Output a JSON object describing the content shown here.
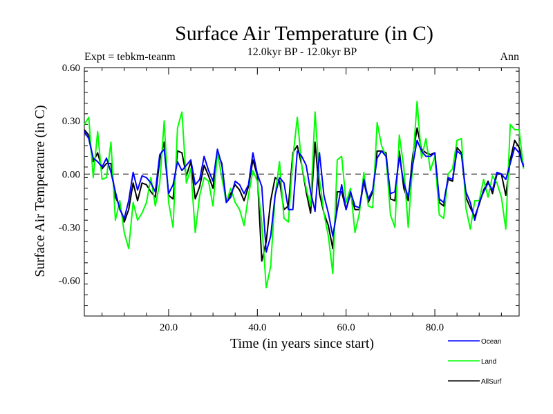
{
  "chart_data": {
    "type": "line",
    "title": "Surface Air Temperature (in C)",
    "subtitle_left": "Expt = tebkm-teanm",
    "subtitle_center": "12.0kyr BP - 12.0kyr BP",
    "subtitle_right": "Ann",
    "xlabel": "Time (in years since start)",
    "ylabel": "Surface Air Temperature (in C)",
    "xlim": [
      1,
      99
    ],
    "ylim": [
      -0.8,
      0.6
    ],
    "x_ticks": [
      20,
      40,
      60,
      80
    ],
    "x_tick_labels": [
      "20.0",
      "40.0",
      "60.0",
      "80.0"
    ],
    "y_ticks": [
      0.6,
      0.3,
      0.0,
      -0.3,
      -0.6
    ],
    "y_tick_labels": [
      "0.60",
      "0.30",
      "0.00",
      "-0.30",
      "-0.60"
    ],
    "zero_line": "dashed",
    "legend_position": "bottom-right",
    "colors": {
      "Ocean": "#0000ff",
      "Land": "#00ff00",
      "AllSurf": "#000000"
    },
    "x_start": 1,
    "x_step": 1,
    "series": [
      {
        "name": "AllSurf",
        "values": [
          0.25,
          0.22,
          0.07,
          0.12,
          0.03,
          0.06,
          0.06,
          -0.13,
          -0.18,
          -0.27,
          -0.2,
          -0.05,
          -0.15,
          -0.05,
          -0.06,
          -0.1,
          -0.13,
          0.08,
          0.18,
          -0.12,
          -0.14,
          0.13,
          0.12,
          -0.01,
          0.07,
          -0.14,
          -0.07,
          0.05,
          -0.01,
          -0.08,
          0.12,
          0.06,
          -0.16,
          -0.11,
          -0.06,
          -0.09,
          -0.15,
          -0.07,
          0.08,
          -0.01,
          -0.49,
          -0.38,
          -0.15,
          -0.02,
          -0.04,
          -0.2,
          -0.18,
          0.12,
          0.16,
          0.05,
          -0.1,
          -0.22,
          0.18,
          -0.11,
          -0.22,
          -0.29,
          -0.42,
          -0.1,
          -0.1,
          -0.2,
          -0.11,
          -0.2,
          -0.2,
          -0.04,
          -0.16,
          -0.1,
          0.13,
          0.13,
          0.12,
          -0.14,
          -0.15,
          0.13,
          -0.08,
          -0.15,
          0.1,
          0.26,
          0.14,
          0.12,
          0.11,
          0.12,
          -0.16,
          -0.18,
          -0.03,
          -0.04,
          0.15,
          0.12,
          -0.13,
          -0.19,
          -0.24,
          -0.17,
          -0.09,
          -0.04,
          -0.11,
          0.0,
          0.0,
          -0.12,
          0.08,
          0.19,
          0.15,
          0.05
        ]
      },
      {
        "name": "Land",
        "values": [
          0.28,
          0.32,
          -0.02,
          0.24,
          -0.03,
          -0.02,
          0.18,
          -0.26,
          -0.15,
          -0.33,
          -0.42,
          -0.16,
          -0.26,
          -0.22,
          -0.16,
          -0.02,
          -0.18,
          -0.05,
          0.3,
          -0.16,
          -0.3,
          0.26,
          0.35,
          -0.05,
          0.03,
          -0.33,
          -0.12,
          -0.02,
          -0.04,
          -0.18,
          0.12,
          -0.02,
          -0.16,
          -0.08,
          -0.16,
          -0.2,
          -0.29,
          -0.12,
          0.02,
          -0.04,
          -0.28,
          -0.64,
          -0.52,
          -0.12,
          0.07,
          -0.25,
          -0.27,
          0.09,
          0.32,
          0.05,
          -0.08,
          -0.18,
          0.35,
          -0.03,
          -0.22,
          -0.35,
          -0.56,
          0.08,
          0.1,
          -0.16,
          -0.08,
          -0.33,
          -0.22,
          0.01,
          -0.18,
          -0.19,
          0.29,
          0.16,
          0.1,
          -0.23,
          -0.3,
          0.22,
          0.04,
          -0.3,
          0.05,
          0.41,
          0.09,
          0.2,
          0.02,
          0.1,
          -0.23,
          -0.25,
          0.0,
          0.03,
          0.19,
          0.2,
          -0.19,
          -0.31,
          -0.15,
          -0.15,
          -0.03,
          -0.13,
          -0.01,
          -0.05,
          -0.13,
          -0.31,
          0.28,
          0.25,
          0.25,
          0.03
        ]
      },
      {
        "name": "Ocean",
        "values": [
          0.24,
          0.2,
          0.09,
          0.07,
          0.04,
          0.09,
          0.01,
          -0.1,
          -0.2,
          -0.25,
          -0.15,
          0.01,
          -0.09,
          -0.01,
          -0.02,
          -0.05,
          -0.1,
          0.11,
          0.14,
          -0.11,
          -0.06,
          0.07,
          0.02,
          0.05,
          0.08,
          -0.06,
          -0.03,
          0.1,
          0.02,
          -0.04,
          0.14,
          0.05,
          -0.16,
          -0.13,
          -0.04,
          -0.06,
          -0.11,
          -0.06,
          0.12,
          0.0,
          -0.07,
          -0.44,
          -0.35,
          -0.12,
          -0.02,
          -0.05,
          -0.2,
          -0.2,
          0.13,
          0.1,
          0.05,
          -0.1,
          -0.21,
          0.12,
          -0.12,
          -0.22,
          -0.35,
          -0.2,
          -0.06,
          -0.2,
          -0.1,
          -0.18,
          -0.19,
          -0.03,
          -0.14,
          -0.09,
          0.09,
          0.13,
          0.1,
          -0.11,
          -0.1,
          0.1,
          -0.05,
          -0.13,
          0.05,
          0.19,
          0.13,
          0.1,
          0.1,
          0.12,
          -0.14,
          -0.16,
          -0.02,
          -0.03,
          0.13,
          0.11,
          -0.1,
          -0.16,
          -0.26,
          -0.16,
          -0.1,
          -0.05,
          -0.09,
          0.01,
          0.0,
          -0.03,
          0.06,
          0.15,
          0.12,
          0.04
        ]
      }
    ],
    "legend_entries": [
      "Ocean",
      "Land",
      "AllSurf"
    ]
  }
}
